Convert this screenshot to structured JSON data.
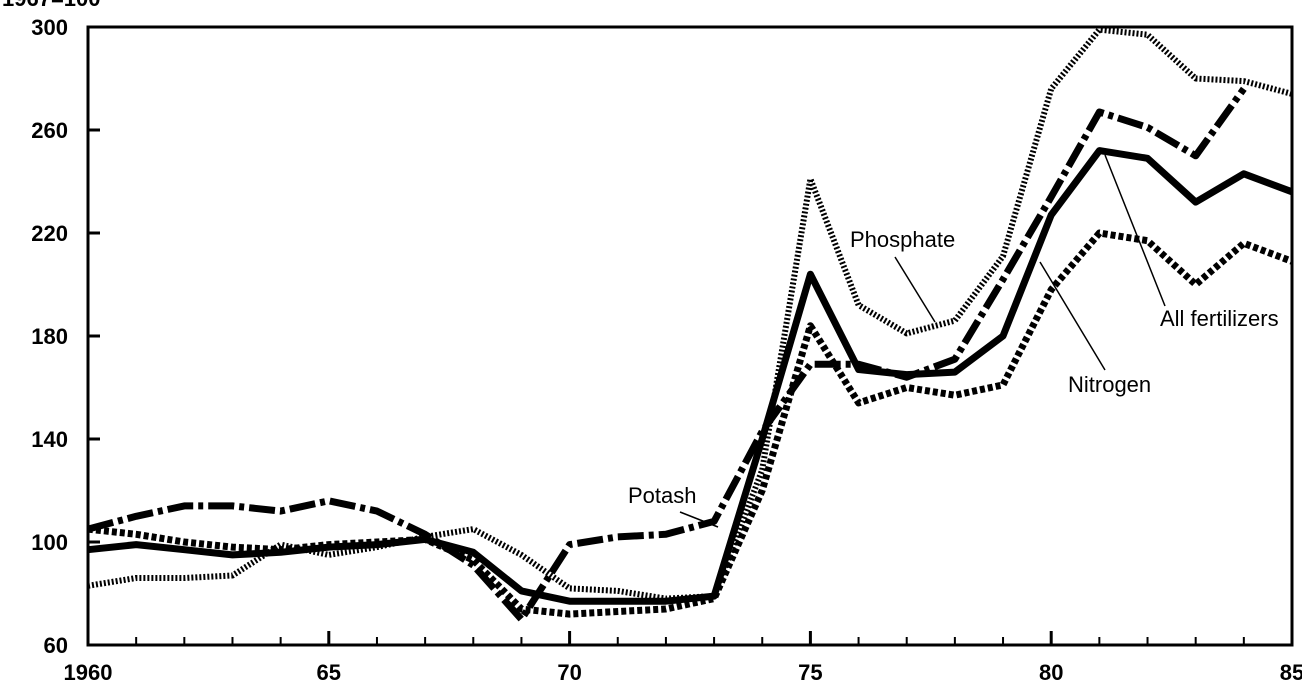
{
  "chart_data": {
    "type": "line",
    "y_label": "1967=100",
    "x": [
      1960,
      1961,
      1962,
      1963,
      1964,
      1965,
      1966,
      1967,
      1968,
      1969,
      1970,
      1971,
      1972,
      1973,
      1974,
      1975,
      1976,
      1977,
      1978,
      1979,
      1980,
      1981,
      1982,
      1983,
      1984,
      1985
    ],
    "xlim": [
      1960,
      1985
    ],
    "xticks": [
      1960,
      {
        "value": 1965,
        "label": "65"
      },
      {
        "value": 1970,
        "label": "70"
      },
      {
        "value": 1975,
        "label": "75"
      },
      {
        "value": 1980,
        "label": "80"
      },
      {
        "value": 1985,
        "label": "85"
      }
    ],
    "xticks_minor": [
      1961,
      1962,
      1963,
      1964,
      1966,
      1967,
      1968,
      1969,
      1971,
      1972,
      1973,
      1974,
      1976,
      1977,
      1978,
      1979,
      1981,
      1982,
      1983,
      1984
    ],
    "ylim": [
      60,
      300
    ],
    "yticks": [
      60,
      100,
      140,
      180,
      220,
      260,
      300
    ],
    "series": [
      {
        "name": "All fertilizers",
        "color": "#000000",
        "style": "solid",
        "values": [
          97,
          99,
          97,
          95,
          96,
          98,
          99,
          101,
          96,
          81,
          77,
          77,
          77,
          79,
          140,
          204,
          167,
          165,
          166,
          180,
          227,
          252,
          249,
          232,
          243,
          236
        ]
      },
      {
        "name": "Phosphate",
        "color": "#000000",
        "style": "dotted",
        "values": [
          83,
          86,
          86,
          87,
          99,
          95,
          98,
          102,
          105,
          95,
          82,
          81,
          78,
          79,
          128,
          241,
          192,
          181,
          186,
          211,
          276,
          299,
          297,
          280,
          279,
          274
        ]
      },
      {
        "name": "Nitrogen",
        "color": "#000000",
        "style": "dashed",
        "values": [
          105,
          103,
          100,
          98,
          97,
          99,
          100,
          101,
          93,
          74,
          72,
          73,
          74,
          78,
          120,
          184,
          154,
          160,
          157,
          161,
          198,
          220,
          217,
          200,
          216,
          209
        ]
      },
      {
        "name": "Potash",
        "color": "#000000",
        "style": "dashdot",
        "values": [
          105,
          110,
          114,
          114,
          112,
          116,
          112,
          103,
          91,
          70,
          99,
          102,
          103,
          108,
          143,
          169,
          169,
          164,
          171,
          202,
          234,
          267,
          261,
          250,
          276,
          null
        ]
      }
    ]
  }
}
